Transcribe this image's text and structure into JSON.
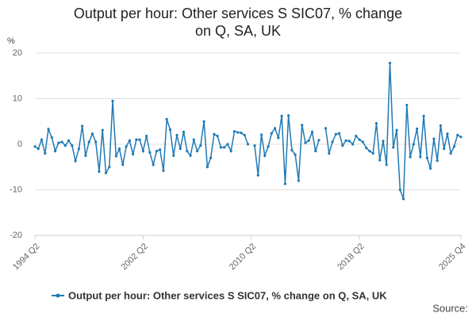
{
  "chart_data": {
    "type": "line",
    "title": "Output per hour: Other services S SIC07, % change on Q, SA, UK",
    "y_label": "%",
    "source": "Source:",
    "categories": [
      "1994 Q2",
      null,
      null,
      null,
      null,
      null,
      null,
      null,
      null,
      null,
      null,
      null,
      null,
      null,
      null,
      null,
      null,
      null,
      null,
      null,
      null,
      null,
      null,
      null,
      null,
      null,
      null,
      null,
      null,
      null,
      null,
      null,
      "2002 Q2",
      null,
      null,
      null,
      null,
      null,
      null,
      null,
      null,
      null,
      null,
      null,
      null,
      null,
      null,
      null,
      null,
      null,
      null,
      null,
      null,
      null,
      null,
      null,
      null,
      null,
      null,
      null,
      null,
      null,
      null,
      null,
      "2010 Q2",
      null,
      null,
      null,
      null,
      null,
      null,
      null,
      null,
      null,
      null,
      null,
      null,
      null,
      null,
      null,
      null,
      null,
      null,
      null,
      null,
      null,
      null,
      null,
      null,
      null,
      null,
      null,
      null,
      null,
      null,
      null,
      "2018 Q2",
      null,
      null,
      null,
      null,
      null,
      null,
      null,
      null,
      null,
      null,
      null,
      null,
      null,
      null,
      null,
      null,
      null,
      null,
      null,
      null,
      null,
      null,
      null,
      null,
      null,
      null,
      null,
      null,
      null,
      "2025 Q4"
    ],
    "series": [
      {
        "name": "Output per hour: Other services S SIC07, % change on Q, SA, UK",
        "color": "#1f7ab5",
        "values": [
          -0.5,
          -1,
          1,
          -2,
          3.3,
          1.5,
          -1.5,
          0.3,
          0.5,
          -0.3,
          0.8,
          -0.3,
          -3.7,
          -1,
          4,
          -2.5,
          0.5,
          2.3,
          0.5,
          -6,
          3.1,
          -6.3,
          -5,
          9.5,
          -2.6,
          -1,
          -4.5,
          -0.5,
          0.8,
          -2.2,
          1,
          1,
          -1.5,
          1.8,
          -1.8,
          -4.5,
          -1.5,
          -1.2,
          -5.8,
          5.5,
          3.2,
          -2.5,
          2,
          -1,
          2.7,
          -1.5,
          -2.5,
          1,
          -1.5,
          -0.3,
          5,
          -5,
          -3,
          2.2,
          1.8,
          -0.7,
          -0.7,
          0,
          -1.5,
          2.8,
          2.6,
          2.5,
          2,
          0,
          null,
          -0.3,
          -6.8,
          2.1,
          -2.5,
          -0.5,
          2.4,
          3.5,
          1.4,
          6.2,
          -8.7,
          6.3,
          -1.3,
          -2.3,
          -8,
          4.2,
          0.3,
          0.8,
          2.7,
          -1.5,
          0.9,
          null,
          3.5,
          -2,
          0.5,
          2.2,
          2.4,
          -0.3,
          0.8,
          0.7,
          0,
          1.8,
          1,
          0.5,
          -0.8,
          -1.5,
          -2,
          4.6,
          -3.5,
          0.7,
          -4.5,
          17.8,
          -0.7,
          3.1,
          -10,
          -12,
          8.6,
          -2.8,
          0,
          3.4,
          -2.8,
          6.2,
          -3,
          -5.3,
          1.2,
          -3.6,
          4.1,
          -1,
          2.3,
          -2,
          -0.5,
          2,
          1.6
        ]
      }
    ],
    "ylim": [
      -20,
      20
    ],
    "yticks": [
      -20,
      -10,
      0,
      10,
      20
    ],
    "grid": true
  }
}
